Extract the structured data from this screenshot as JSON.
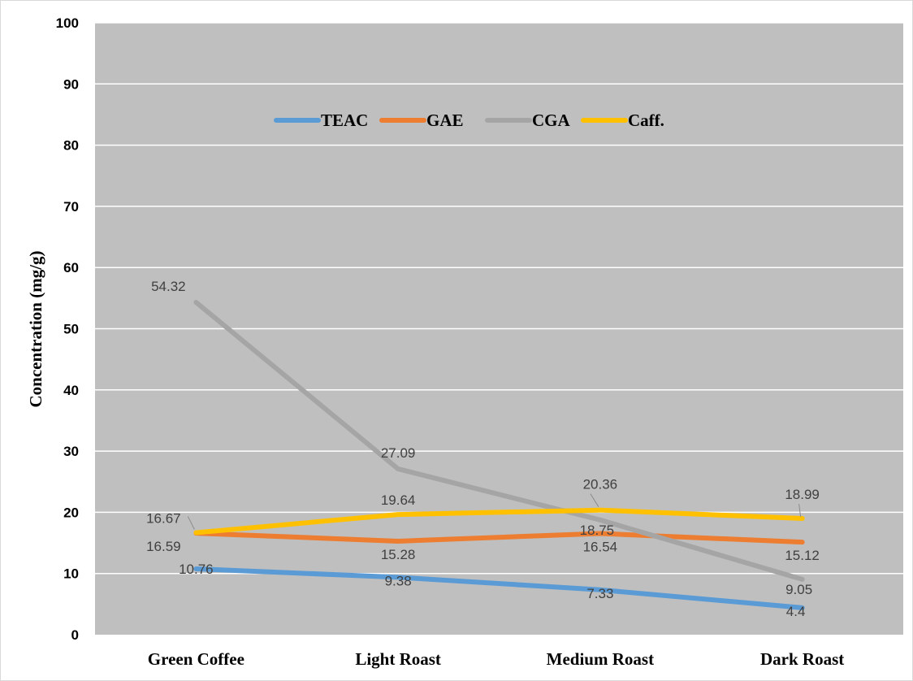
{
  "chart_data": {
    "type": "line",
    "title": "",
    "xlabel": "",
    "ylabel": "Concentration (mg/g)",
    "ylim": [
      0,
      100
    ],
    "yticks": [
      "0",
      "10",
      "20",
      "30",
      "40",
      "50",
      "60",
      "70",
      "80",
      "90",
      "100"
    ],
    "categories": [
      "Green Coffee",
      "Light Roast",
      "Medium Roast",
      "Dark Roast"
    ],
    "grid": true,
    "legend_position": "top-center",
    "plot_background": "#bfbfbf",
    "series": [
      {
        "name": "TEAC",
        "color": "#5b9bd5",
        "values": [
          10.76,
          9.38,
          7.33,
          4.4
        ],
        "labels": [
          "10.76",
          "9.38",
          "7.33",
          "4.4"
        ]
      },
      {
        "name": "GAE",
        "color": "#ed7d31",
        "values": [
          16.59,
          15.28,
          16.54,
          15.12
        ],
        "labels": [
          "16.59",
          "15.28",
          "16.54",
          "15.12"
        ]
      },
      {
        "name": "CGA",
        "color": "#a5a5a5",
        "values": [
          54.32,
          27.09,
          18.75,
          9.05
        ],
        "labels": [
          "54.32",
          "27.09",
          "18.75",
          "9.05"
        ]
      },
      {
        "name": "Caff.",
        "color": "#ffc000",
        "values": [
          16.67,
          19.64,
          20.36,
          18.99
        ],
        "labels": [
          "16.67",
          "19.64",
          "20.36",
          "18.99"
        ]
      }
    ]
  }
}
